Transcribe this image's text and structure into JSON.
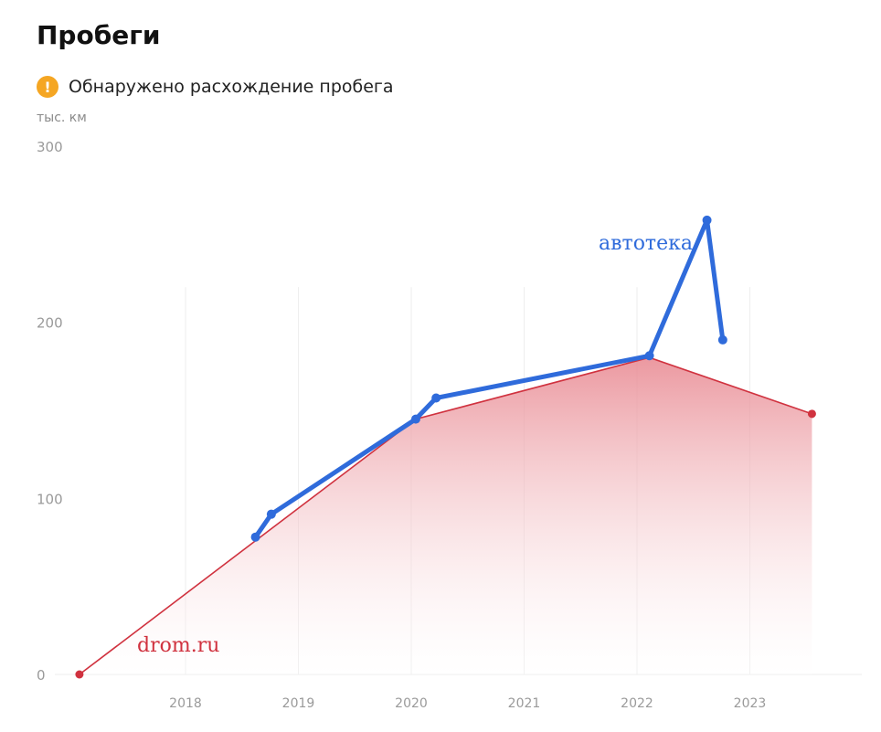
{
  "page": {
    "title": "Пробеги",
    "warning_text": "Обнаружено расхождение пробега",
    "warning_icon": "exclamation-icon",
    "unit_label": "тыс. км"
  },
  "chart_data": {
    "type": "line",
    "title": "Пробеги",
    "ylabel": "тыс. км",
    "xlim": [
      2017.0,
      2024.0
    ],
    "ylim": [
      0,
      300
    ],
    "yticks": [
      "0",
      "100",
      "200",
      "300"
    ],
    "xticks": [
      "2018",
      "2019",
      "2020",
      "2021",
      "2022",
      "2023"
    ],
    "grid": "vertical",
    "series": [
      {
        "name": "drom.ru",
        "color": "#d0323f",
        "style": "area",
        "points": [
          {
            "x": 2017.06,
            "y": 0
          },
          {
            "x": 2020.04,
            "y": 145
          },
          {
            "x": 2022.11,
            "y": 180
          },
          {
            "x": 2023.55,
            "y": 148
          }
        ]
      },
      {
        "name": "автотека",
        "color": "#2f6bdb",
        "style": "line",
        "points": [
          {
            "x": 2018.62,
            "y": 78
          },
          {
            "x": 2018.76,
            "y": 91
          },
          {
            "x": 2020.04,
            "y": 145
          },
          {
            "x": 2020.22,
            "y": 157
          },
          {
            "x": 2022.11,
            "y": 181
          },
          {
            "x": 2022.62,
            "y": 258
          },
          {
            "x": 2022.76,
            "y": 190
          }
        ]
      }
    ]
  }
}
